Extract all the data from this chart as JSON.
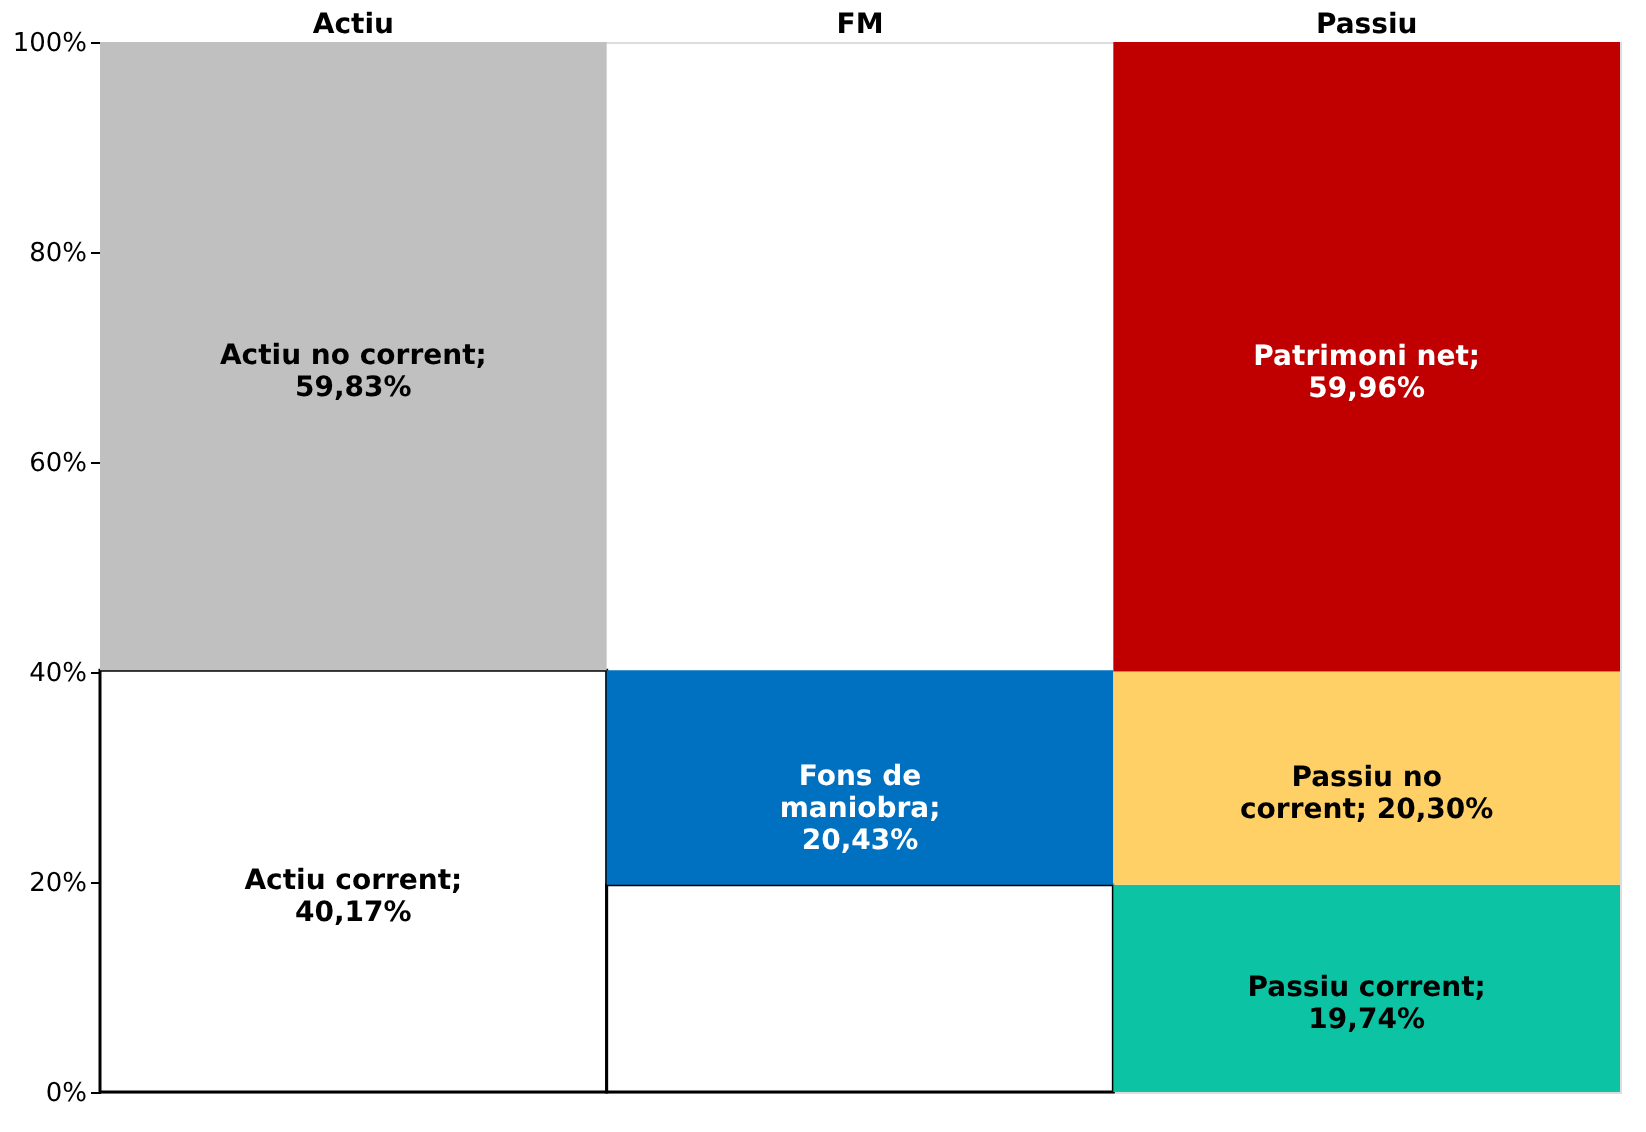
{
  "chart_data": {
    "type": "bar",
    "stacked": true,
    "categories": [
      "Actiu",
      "FM",
      "Passiu"
    ],
    "series": [
      {
        "colors": [
          "#ffffff",
          "#ffffff",
          "#0cc4a4"
        ],
        "values": [
          40.17,
          19.74,
          19.74
        ],
        "value_labels": [
          "Actiu corrent;\n40,17%",
          null,
          "Passiu corrent;\n19,74%"
        ]
      },
      {
        "colors": [
          "#c0c0c0",
          "#0070c0",
          "#ffd066"
        ],
        "values": [
          59.83,
          20.43,
          20.3
        ],
        "value_labels": [
          "Actiu no corrent;\n59,83%",
          "Fons de\nmaniobra;\n20,43%",
          "Passiu no\ncorrent; 20,30%"
        ]
      },
      {
        "colors": [
          null,
          null,
          "#c00000"
        ],
        "values": [
          null,
          null,
          59.96
        ],
        "value_labels": [
          null,
          null,
          "Patrimoni net;\n59,96%"
        ]
      }
    ],
    "ylim": [
      0,
      100
    ],
    "yticks": [
      {
        "value": 0,
        "label": "0%"
      },
      {
        "value": 20,
        "label": "20%"
      },
      {
        "value": 40,
        "label": "40%"
      },
      {
        "value": 60,
        "label": "60%"
      },
      {
        "value": 80,
        "label": "80%"
      },
      {
        "value": 100,
        "label": "100%"
      }
    ],
    "grid": false
  }
}
